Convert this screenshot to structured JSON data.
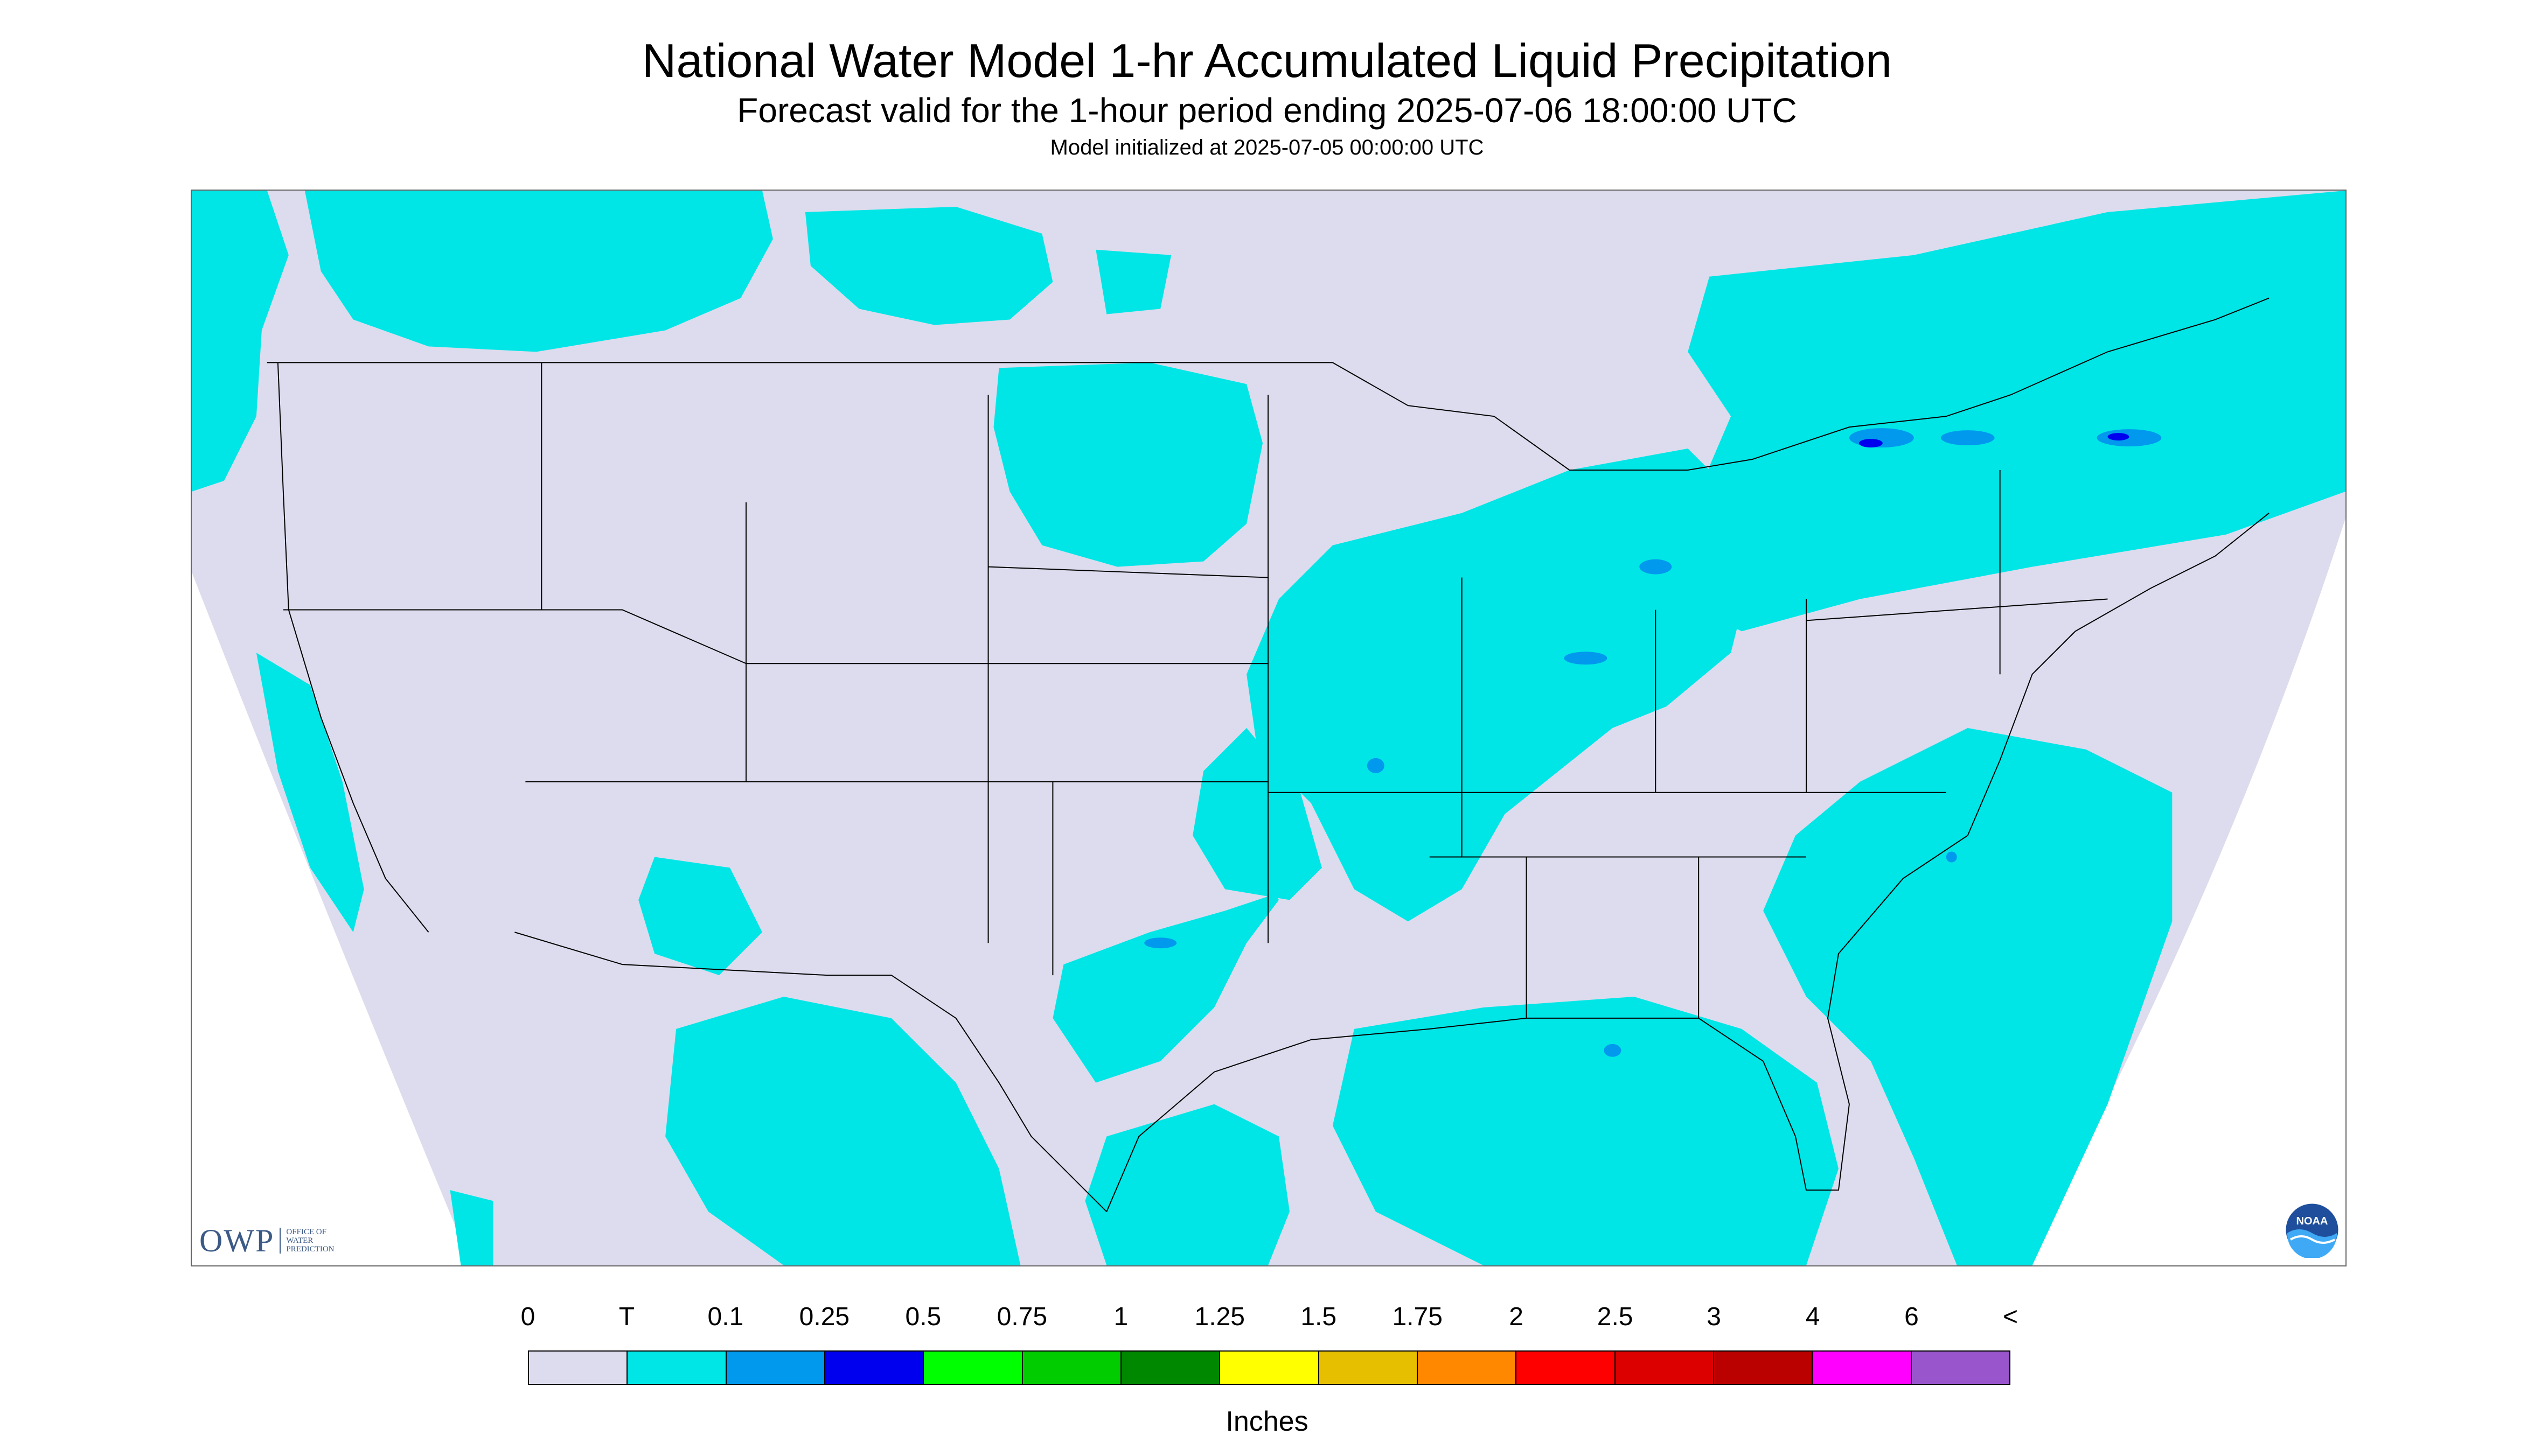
{
  "titles": {
    "main": "National Water Model 1-hr Accumulated Liquid Precipitation",
    "sub": "Forecast valid for the 1-hour period ending 2025-07-06 18:00:00 UTC",
    "init": "Model initialized at 2025-07-05 00:00:00 UTC"
  },
  "logos": {
    "owp": {
      "abbr": "OWP",
      "lines": [
        "OFFICE OF",
        "WATER",
        "PREDICTION"
      ]
    },
    "noaa": {
      "text": "NOAA"
    }
  },
  "legend": {
    "labels": [
      "0",
      "T",
      "0.1",
      "0.25",
      "0.5",
      "0.75",
      "1",
      "1.25",
      "1.5",
      "1.75",
      "2",
      "2.5",
      "3",
      "4",
      "6",
      "<"
    ],
    "colors": [
      "#dcdcee",
      "#00e6e6",
      "#0099ee",
      "#0000ee",
      "#00ff00",
      "#00cc00",
      "#008800",
      "#ffff00",
      "#e6bf00",
      "#ff8800",
      "#ff0000",
      "#dd0000",
      "#bb0000",
      "#ff00ff",
      "#9955cc"
    ],
    "units": "Inches"
  },
  "map_colors": {
    "no_precip": "#dcdcee",
    "trace": "#00e6e6",
    "light": "#0099ee",
    "moderate": "#0000ee",
    "outside_domain": "#ffffff",
    "boundaries": "#000000"
  }
}
